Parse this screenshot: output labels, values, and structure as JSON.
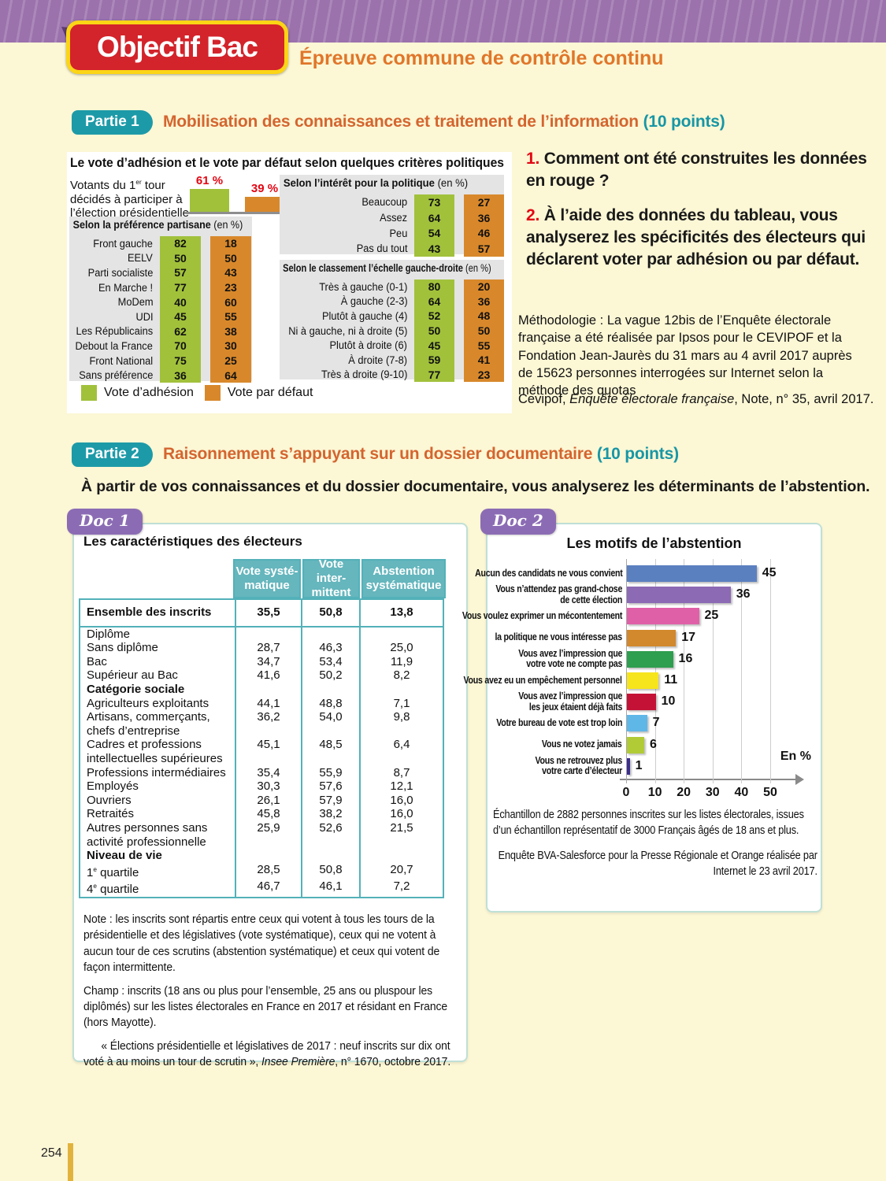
{
  "page": {
    "number": "254"
  },
  "banner": {
    "logo": "Objectif Bac",
    "subtitle": "Épreuve commune de contrôle continu"
  },
  "partie1": {
    "badge": "Partie 1",
    "title": "Mobilisation des connaissances et traitement de l’information",
    "points": " (10 points)",
    "questions": [
      {
        "num": "1. ",
        "text": "Comment ont été construites les données en rouge ?"
      },
      {
        "num": "2. ",
        "text": "À l’aide des données du tableau, vous analyserez les spécificités des électeurs qui déclarent voter par adhésion ou par défaut."
      }
    ],
    "methodology": "Méthodologie : La vague 12bis de l’Enquête électorale française a été réalisée par Ipsos pour le CEVIPOF et la Fondation Jean-Jaurès du 31 mars au 4 avril 2017 auprès de 15623 personnes interrogées sur Internet selon la méthode des quotas",
    "source": {
      "pre": "Cevipof, ",
      "italic": "Enquête électorale française",
      "post": ", Note, n° 35, avril 2017."
    }
  },
  "partie2": {
    "badge": "Partie 2",
    "title": "Raisonnement s’appuyant sur un dossier documentaire",
    "points": " (10 points)",
    "intro": "À partir de vos connaissances et du dossier documentaire, vous analyserez les déterminants de l’abstention."
  },
  "doc1": {
    "badge": "Doc 1",
    "note": "Note : les inscrits sont répartis entre ceux qui votent à tous les tours de la présidentielle et des législatives (vote systématique), ceux qui ne votent à aucun tour de ces scrutins (abstention systématique) et ceux qui votent de façon intermittente.",
    "champ": "Champ : inscrits (18 ans ou plus pour l’ensemble, 25 ans ou pluspour les diplômés) sur les listes électorales en France en 2017 et résidant en France (hors Mayotte).",
    "source": {
      "pre": "« Élections présidentielle et législatives de 2017 : neuf inscrits sur dix ont voté à au moins un tour de scrutin », ",
      "italic": "Insee Première",
      "post": ", n° 1670, octobre 2017."
    }
  },
  "doc2": {
    "badge": "Doc 2",
    "sample": "Échantillon de 2882 personnes inscrites sur les listes électorales, issues d’un échantillon représentatif de 3000 Français âgés de 18 ans et plus.",
    "source": "Enquête BVA-Salesforce pour la Presse Régionale et Orange réalisée par Internet le 23 avril 2017."
  },
  "chart_data": [
    {
      "id": "vote-adhesion-defaut",
      "type": "bar",
      "title": "Le vote d’adhésion et le vote par défaut selon quelques critères politiques",
      "legend": [
        "Vote d’adhésion",
        "Vote par défaut"
      ],
      "legend_colors": [
        "#a1c13b",
        "#d8882b"
      ],
      "value_label_color": "#e30613",
      "panel_background": "#e4e4e4",
      "intro": {
        "line1": "Votants du 1|er| tour",
        "line2": "décidés à participer à",
        "line3": "l’élection présidentielle",
        "labels": [
          "61 %",
          "39 %"
        ],
        "values": [
          61,
          39
        ]
      },
      "sections": [
        {
          "header_bold": "Selon la préférence partisane",
          "header_normal": " (en %)",
          "rows": [
            {
              "label": "Front gauche",
              "a": 82,
              "d": 18
            },
            {
              "label": "EELV",
              "a": 50,
              "d": 50
            },
            {
              "label": "Parti socialiste",
              "a": 57,
              "d": 43
            },
            {
              "label": "En Marche !",
              "a": 77,
              "d": 23
            },
            {
              "label": "MoDem",
              "a": 40,
              "d": 60
            },
            {
              "label": "UDI",
              "a": 45,
              "d": 55
            },
            {
              "label": "Les Républicains",
              "a": 62,
              "d": 38
            },
            {
              "label": "Debout la France",
              "a": 70,
              "d": 30
            },
            {
              "label": "Front National",
              "a": 75,
              "d": 25
            },
            {
              "label": "Sans préférence",
              "a": 36,
              "d": 64
            }
          ]
        },
        {
          "header_bold": "Selon l’intérêt pour la politique",
          "header_normal": " (en %)",
          "rows": [
            {
              "label": "Beaucoup",
              "a": 73,
              "d": 27
            },
            {
              "label": "Assez",
              "a": 64,
              "d": 36
            },
            {
              "label": "Peu",
              "a": 54,
              "d": 46
            },
            {
              "label": "Pas du tout",
              "a": 43,
              "d": 57
            }
          ]
        },
        {
          "header_bold": "Selon le classement l’échelle gauche-droite",
          "header_normal": " (en %)",
          "rows": [
            {
              "label": "Très à gauche (0-1)",
              "a": 80,
              "d": 20
            },
            {
              "label": "À gauche (2-3)",
              "a": 64,
              "d": 36
            },
            {
              "label": "Plutôt à gauche (4)",
              "a": 52,
              "d": 48
            },
            {
              "label": "Ni à gauche, ni à droite (5)",
              "a": 50,
              "d": 50
            },
            {
              "label": "Plutôt à droite (6)",
              "a": 45,
              "d": 55
            },
            {
              "label": "À droite (7-8)",
              "a": 59,
              "d": 41
            },
            {
              "label": "Très à droite (9-10)",
              "a": 77,
              "d": 23
            }
          ]
        }
      ]
    },
    {
      "id": "motifs-abstention",
      "type": "bar",
      "orientation": "horizontal",
      "title": "Les motifs de l’abstention",
      "categories": [
        [
          "Aucun des candidats ne vous convient"
        ],
        [
          "Vous n’attendez pas grand-chose",
          "de cette élection"
        ],
        [
          "Vous voulez exprimer un mécontentement"
        ],
        [
          "la politique ne vous intéresse pas"
        ],
        [
          "Vous avez l’impression que",
          "votre vote ne compte pas"
        ],
        [
          "Vous avez eu un empêchement personnel"
        ],
        [
          "Vous avez l’impression que",
          "les jeux étaient déjà faits"
        ],
        [
          "Votre bureau de vote est trop loin"
        ],
        [
          "Vous ne votez jamais"
        ],
        [
          "Vous ne retrouvez plus",
          "votre carte d’électeur"
        ]
      ],
      "values": [
        45,
        36,
        25,
        17,
        16,
        11,
        10,
        7,
        6,
        1
      ],
      "colors": [
        "#5b80c0",
        "#8d6ab4",
        "#e060a8",
        "#d2882c",
        "#2e9e4f",
        "#f6e41c",
        "#c41236",
        "#5fb7e8",
        "#b0cb36",
        "#3c2e8e"
      ],
      "ticks": [
        "0",
        "10",
        "20",
        "30",
        "40",
        "50"
      ],
      "xlim": [
        0,
        50
      ],
      "xlabel": "En %",
      "grid": true
    },
    {
      "id": "caracteristiques-electeurs",
      "type": "table",
      "title": "Les caractéristiques des électeurs",
      "columns": [
        [
          "Vote systé-",
          "matique"
        ],
        [
          "Vote inter-",
          "mittent"
        ],
        [
          "Abstention",
          "systématique"
        ]
      ],
      "rows": [
        {
          "label": [
            "Ensemble des inscrits"
          ],
          "v": [
            "35,5",
            "50,8",
            "13,8"
          ],
          "ensemble": true
        },
        {
          "label": [
            "Diplôme"
          ],
          "v": [
            "",
            "",
            ""
          ]
        },
        {
          "label": [
            "Sans diplôme"
          ],
          "v": [
            "28,7",
            "46,3",
            "25,0"
          ]
        },
        {
          "label": [
            "Bac"
          ],
          "v": [
            "34,7",
            "53,4",
            "11,9"
          ]
        },
        {
          "label": [
            "Supérieur au Bac"
          ],
          "v": [
            "41,6",
            "50,2",
            "8,2"
          ]
        },
        {
          "label": [
            "Catégorie sociale"
          ],
          "v": [
            "",
            "",
            ""
          ],
          "bold": true
        },
        {
          "label": [
            "Agriculteurs exploitants"
          ],
          "v": [
            "44,1",
            "48,8",
            "7,1"
          ]
        },
        {
          "label": [
            "Artisans, commerçants,",
            "chefs d’entreprise"
          ],
          "v": [
            "36,2",
            "54,0",
            "9,8"
          ]
        },
        {
          "label": [
            "Cadres et professions",
            "intellectuelles supérieures"
          ],
          "v": [
            "45,1",
            "48,5",
            "6,4"
          ]
        },
        {
          "label": [
            "Professions intermédiaires"
          ],
          "v": [
            "35,4",
            "55,9",
            "8,7"
          ]
        },
        {
          "label": [
            "Employés"
          ],
          "v": [
            "30,3",
            "57,6",
            "12,1"
          ]
        },
        {
          "label": [
            "Ouvriers"
          ],
          "v": [
            "26,1",
            "57,9",
            "16,0"
          ]
        },
        {
          "label": [
            "Retraités"
          ],
          "v": [
            "45,8",
            "38,2",
            "16,0"
          ]
        },
        {
          "label": [
            "Autres personnes sans",
            "activité professionnelle"
          ],
          "v": [
            "25,9",
            "52,6",
            "21,5"
          ]
        },
        {
          "label": [
            "Niveau de vie"
          ],
          "v": [
            "",
            "",
            ""
          ],
          "bold": true
        },
        {
          "label": [
            "1|e| quartile"
          ],
          "v": [
            "28,5",
            "50,8",
            "20,7"
          ]
        },
        {
          "label": [
            "4|e| quartile"
          ],
          "v": [
            "46,7",
            "46,1",
            "7,2"
          ]
        }
      ]
    }
  ]
}
